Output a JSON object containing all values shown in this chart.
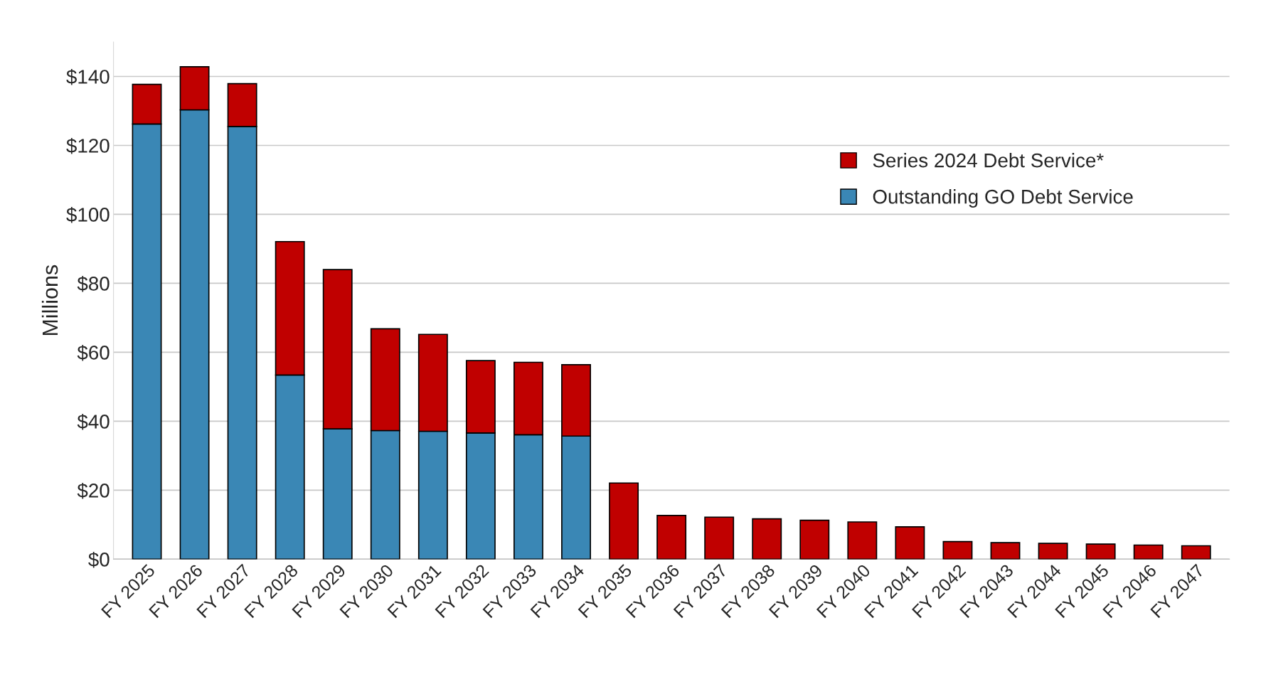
{
  "chart_data": {
    "type": "bar",
    "stacked": true,
    "ylabel": "Millions",
    "categories": [
      "FY 2025",
      "FY 2026",
      "FY 2027",
      "FY 2028",
      "FY 2029",
      "FY 2030",
      "FY 2031",
      "FY 2032",
      "FY 2033",
      "FY 2034",
      "FY 2035",
      "FY 2036",
      "FY 2037",
      "FY 2038",
      "FY 2039",
      "FY 2040",
      "FY 2041",
      "FY 2042",
      "FY 2043",
      "FY 2044",
      "FY 2045",
      "FY 2046",
      "FY 2047"
    ],
    "series": [
      {
        "name": "Outstanding GO Debt Service",
        "color": "#3a87b5",
        "values": [
          126.2,
          130.3,
          125.5,
          53.4,
          37.8,
          37.3,
          37.1,
          36.6,
          36.1,
          35.7,
          null,
          null,
          null,
          null,
          null,
          null,
          null,
          null,
          null,
          null,
          null,
          null,
          null
        ]
      },
      {
        "name": "Series 2024 Debt Service*",
        "color": "#c00000",
        "values": [
          11.5,
          12.5,
          12.4,
          38.7,
          46.2,
          29.5,
          28.1,
          21.0,
          21.0,
          20.7,
          22.1,
          12.7,
          12.2,
          11.7,
          11.3,
          10.8,
          9.4,
          5.1,
          4.8,
          4.6,
          4.4,
          4.1,
          3.9
        ]
      }
    ],
    "ylim": [
      0,
      150
    ],
    "yticks": [
      {
        "value": 0,
        "label": "$0"
      },
      {
        "value": 20,
        "label": "$20"
      },
      {
        "value": 40,
        "label": "$40"
      },
      {
        "value": 60,
        "label": "$60"
      },
      {
        "value": 80,
        "label": "$80"
      },
      {
        "value": 100,
        "label": "$100"
      },
      {
        "value": 120,
        "label": "$120"
      },
      {
        "value": 140,
        "label": "$140"
      }
    ],
    "grid": "y",
    "legend": "top right"
  }
}
